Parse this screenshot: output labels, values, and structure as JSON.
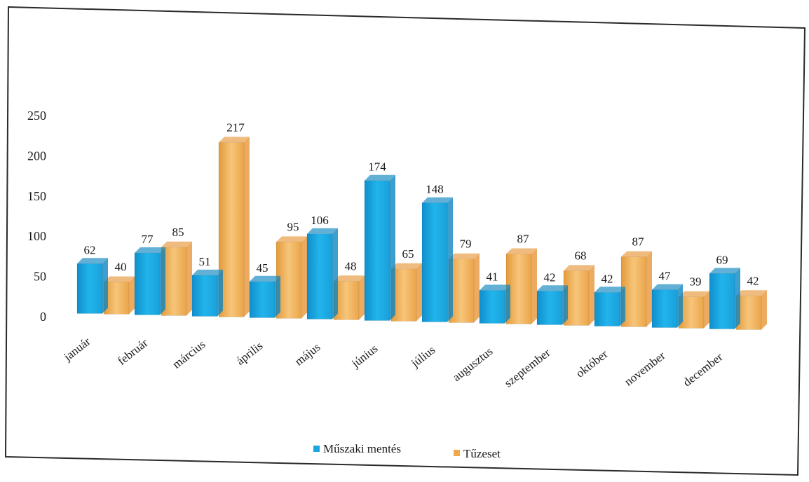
{
  "chart_data": {
    "type": "bar",
    "title": "",
    "xlabel": "",
    "ylabel": "",
    "ylim": [
      0,
      250
    ],
    "yticks": [
      0,
      50,
      100,
      150,
      200,
      250
    ],
    "grid": false,
    "legend_position": "bottom",
    "categories": [
      "január",
      "február",
      "március",
      "április",
      "május",
      "június",
      "július",
      "augusztus",
      "szeptember",
      "október",
      "november",
      "december"
    ],
    "series": [
      {
        "name": "Műszaki mentés",
        "color": "#1aa7e0",
        "values": [
          62,
          77,
          51,
          45,
          106,
          174,
          148,
          41,
          42,
          42,
          47,
          69
        ]
      },
      {
        "name": "Tűzeset",
        "color": "#f0a94a",
        "values": [
          40,
          85,
          217,
          95,
          48,
          65,
          79,
          87,
          68,
          87,
          39,
          42
        ]
      }
    ]
  }
}
